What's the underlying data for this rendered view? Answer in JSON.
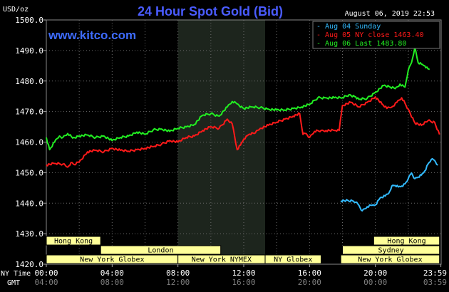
{
  "chart_data": {
    "type": "line",
    "title": "24 Hour Spot Gold (Bid)",
    "site": "www.kitco.com",
    "ylabel": "USD/oz",
    "datetime": "August 06, 2019 22:53",
    "ylim": [
      1420,
      1500
    ],
    "yticks": [
      "1500.0",
      "1490.0",
      "1480.0",
      "1470.0",
      "1460.0",
      "1450.0",
      "1440.0",
      "1430.0",
      "1420.0"
    ],
    "xlim": [
      0,
      24
    ],
    "x_row_label": "NY Time",
    "x2_row_label": "GMT",
    "xticks": [
      "00:00",
      "04:00",
      "08:00",
      "12:00",
      "16:00",
      "20:00",
      "23:59"
    ],
    "xticks_gmt": [
      "04:00",
      "08:00",
      "12:00",
      "16:00",
      "20:00",
      "00:00",
      "03:59"
    ],
    "grid": true,
    "legend_position": "top-right",
    "shaded_region_x": [
      8.0,
      13.3
    ],
    "series": [
      {
        "name": "Aug 04 Sunday",
        "color": "#33bbff",
        "x": [
          17.9,
          18.6,
          18.8,
          19.0,
          19.2,
          19.5,
          19.8,
          20.0,
          20.3,
          20.6,
          20.8,
          21.0,
          21.2,
          21.4,
          21.6,
          21.8,
          22.0,
          22.2,
          22.4,
          22.6,
          22.8,
          23.0,
          23.2,
          23.4,
          23.6,
          23.8
        ],
        "values": [
          1440.8,
          1440.8,
          1440.3,
          1439.3,
          1437.5,
          1438.8,
          1439.3,
          1439.4,
          1441.8,
          1442.3,
          1443.1,
          1445.6,
          1445.8,
          1445.3,
          1445.6,
          1446.3,
          1448.0,
          1449.9,
          1448.0,
          1448.5,
          1449.2,
          1450.5,
          1452.8,
          1454.3,
          1454.0,
          1452.5
        ]
      },
      {
        "name": "Aug 05 NY close 1463.40",
        "color": "#ff1a1a",
        "x": [
          0.0,
          0.5,
          1.0,
          1.3,
          1.5,
          1.7,
          2.0,
          2.5,
          3.0,
          3.5,
          4.0,
          4.5,
          5.0,
          5.5,
          6.0,
          6.5,
          7.0,
          7.5,
          8.0,
          8.5,
          9.0,
          9.5,
          10.0,
          10.5,
          11.0,
          11.3,
          11.6,
          11.8,
          12.0,
          12.3,
          12.7,
          13.0,
          13.5,
          14.0,
          14.5,
          15.0,
          15.4,
          15.6,
          15.8,
          16.0,
          16.3,
          16.7,
          17.0,
          17.5,
          17.8,
          18.0,
          18.5,
          19.0,
          19.5,
          20.0,
          20.4,
          20.7,
          21.0,
          21.3,
          21.6,
          22.0,
          22.4,
          22.8,
          23.2,
          23.6,
          23.9
        ],
        "values": [
          1452.5,
          1453.0,
          1452.8,
          1451.8,
          1453.3,
          1452.6,
          1453.5,
          1456.8,
          1457.3,
          1456.8,
          1458.0,
          1457.3,
          1457.0,
          1457.5,
          1458.0,
          1458.5,
          1459.3,
          1460.5,
          1460.0,
          1461.5,
          1462.0,
          1463.8,
          1465.0,
          1464.5,
          1467.5,
          1466.0,
          1457.5,
          1459.0,
          1461.0,
          1462.5,
          1463.0,
          1464.5,
          1465.5,
          1466.5,
          1467.5,
          1468.5,
          1469.3,
          1462.5,
          1462.8,
          1461.5,
          1463.5,
          1463.8,
          1463.8,
          1463.8,
          1463.8,
          1472.0,
          1473.0,
          1471.5,
          1473.0,
          1474.8,
          1472.5,
          1471.0,
          1471.5,
          1473.0,
          1474.5,
          1470.8,
          1466.3,
          1465.5,
          1467.0,
          1466.5,
          1462.5
        ]
      },
      {
        "name": "Aug 06 Last 1483.80",
        "color": "#22ee22",
        "x": [
          0.0,
          0.2,
          0.5,
          0.8,
          1.0,
          1.3,
          1.6,
          2.0,
          2.5,
          3.0,
          3.5,
          4.0,
          4.5,
          5.0,
          5.5,
          6.0,
          6.5,
          7.0,
          7.5,
          8.0,
          8.5,
          9.0,
          9.5,
          10.0,
          10.5,
          11.0,
          11.3,
          11.6,
          12.0,
          12.5,
          13.0,
          13.5,
          14.0,
          14.5,
          15.0,
          15.5,
          16.0,
          16.5,
          17.0,
          17.5,
          18.0,
          18.4,
          18.8,
          19.0,
          19.5,
          20.0,
          20.5,
          20.9,
          21.2,
          21.5,
          21.8,
          22.0,
          22.2,
          22.4,
          22.6,
          22.8,
          23.0,
          23.2,
          23.3
        ],
        "values": [
          1461.5,
          1457.5,
          1460.0,
          1462.0,
          1461.5,
          1462.8,
          1461.3,
          1462.0,
          1462.3,
          1461.5,
          1462.0,
          1460.5,
          1461.5,
          1462.0,
          1463.3,
          1462.5,
          1464.0,
          1464.3,
          1463.5,
          1464.5,
          1465.0,
          1465.8,
          1468.8,
          1469.3,
          1468.5,
          1471.5,
          1473.3,
          1472.5,
          1471.0,
          1471.5,
          1471.3,
          1470.8,
          1470.5,
          1470.5,
          1471.0,
          1471.5,
          1472.3,
          1474.5,
          1474.5,
          1474.5,
          1474.5,
          1475.5,
          1474.8,
          1474.0,
          1474.3,
          1476.3,
          1478.5,
          1478.0,
          1477.5,
          1479.0,
          1478.0,
          1483.5,
          1486.0,
          1491.0,
          1486.0,
          1485.5,
          1485.0,
          1484.0,
          1483.8
        ]
      }
    ],
    "sessions": [
      {
        "name": "Hong Kong",
        "start": 0.0,
        "end": 3.3,
        "row": 0
      },
      {
        "name": "London",
        "start": 3.3,
        "end": 10.6,
        "row": 1
      },
      {
        "name": "New York Globex",
        "start": 0.0,
        "end": 8.0,
        "row": 2
      },
      {
        "name": "New York NYMEX",
        "start": 8.0,
        "end": 13.3,
        "row": 2
      },
      {
        "name": "NY Globex",
        "start": 13.3,
        "end": 16.7,
        "row": 2
      },
      {
        "name": "Hong Kong",
        "start": 19.9,
        "end": 23.9,
        "row": 0
      },
      {
        "name": "Sydney",
        "start": 18.0,
        "end": 23.9,
        "row": 1
      },
      {
        "name": "New York Globex",
        "start": 17.9,
        "end": 23.9,
        "row": 2
      }
    ]
  }
}
